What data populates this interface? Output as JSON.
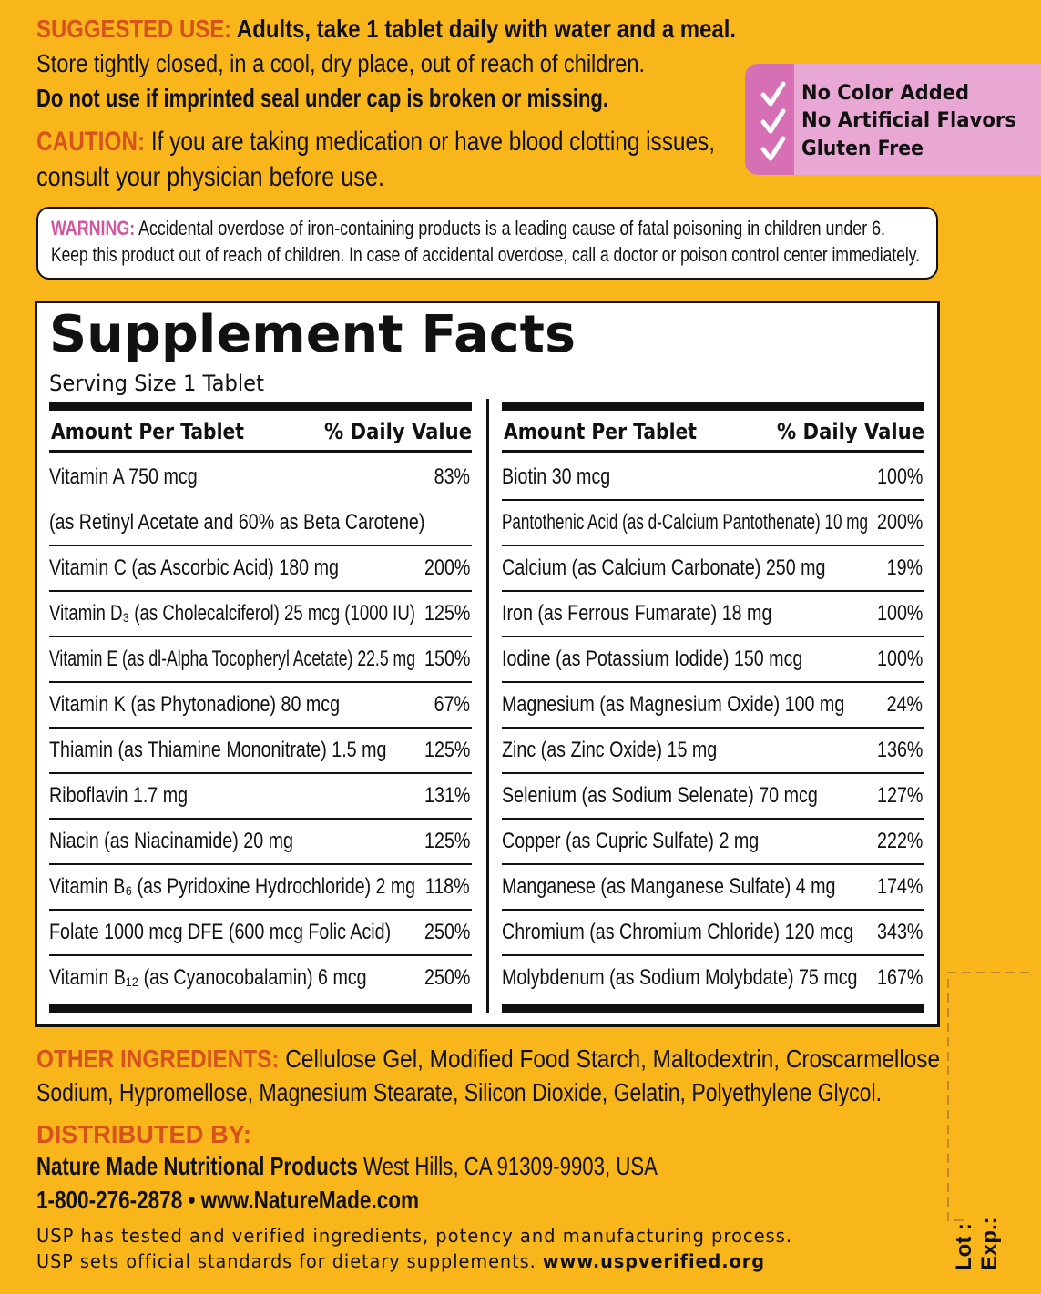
{
  "suggested_use": {
    "label": "SUGGESTED USE:",
    "text": "Adults, take 1 tablet daily with water and a meal."
  },
  "storage": "Store tightly closed, in a cool, dry place, out of reach of children.",
  "seal": "Do not use if imprinted seal under cap is broken or missing.",
  "caution": {
    "label": "CAUTION:",
    "lines": [
      "If you are taking medication or have blood clotting issues,",
      "consult your physician before use."
    ]
  },
  "badges": [
    "No Color Added",
    "No Artificial Flavors",
    "Gluten Free"
  ],
  "warning": {
    "label": "WARNING:",
    "lines": [
      "Accidental overdose of iron-containing products is a leading cause of fatal poisoning in children under 6.",
      "Keep this product out of reach of children. In case of accidental overdose, call a doctor or poison control center immediately."
    ]
  },
  "facts": {
    "title": "Supplement Facts",
    "serving": "Serving Size 1 Tablet",
    "header": {
      "amount": "Amount Per Tablet",
      "dv": "% Daily Value"
    },
    "left": [
      {
        "name": "Vitamin A 750 mcg",
        "dv": "83%",
        "note": "(as Retinyl Acetate and 60% as Beta Carotene)"
      },
      {
        "name": "Vitamin C (as Ascorbic Acid) 180 mg",
        "dv": "200%"
      },
      {
        "name": "Vitamin D₃ (as Cholecalciferol) 25 mcg (1000 IU)",
        "dv": "125%"
      },
      {
        "name": "Vitamin E (as dl-Alpha Tocopheryl Acetate) 22.5 mg",
        "dv": "150%"
      },
      {
        "name": "Vitamin K (as Phytonadione) 80 mcg",
        "dv": "67%"
      },
      {
        "name": "Thiamin (as Thiamine Mononitrate) 1.5 mg",
        "dv": "125%"
      },
      {
        "name": "Riboflavin 1.7 mg",
        "dv": "131%"
      },
      {
        "name": "Niacin (as Niacinamide) 20 mg",
        "dv": "125%"
      },
      {
        "name": "Vitamin B₆ (as Pyridoxine Hydrochloride) 2 mg",
        "dv": "118%"
      },
      {
        "name": "Folate 1000 mcg DFE (600 mcg Folic Acid)",
        "dv": "250%"
      },
      {
        "name": "Vitamin B₁₂ (as Cyanocobalamin) 6 mcg",
        "dv": "250%"
      }
    ],
    "right": [
      {
        "name": "Biotin 30 mcg",
        "dv": "100%"
      },
      {
        "name": "Pantothenic Acid (as d-Calcium Pantothenate) 10 mg",
        "dv": "200%"
      },
      {
        "name": "Calcium (as Calcium Carbonate) 250 mg",
        "dv": "19%"
      },
      {
        "name": "Iron (as Ferrous Fumarate) 18 mg",
        "dv": "100%"
      },
      {
        "name": "Iodine (as Potassium Iodide) 150 mcg",
        "dv": "100%"
      },
      {
        "name": "Magnesium (as Magnesium Oxide) 100 mg",
        "dv": "24%"
      },
      {
        "name": "Zinc (as Zinc Oxide) 15 mg",
        "dv": "136%"
      },
      {
        "name": "Selenium (as Sodium Selenate) 70 mcg",
        "dv": "127%"
      },
      {
        "name": "Copper (as Cupric Sulfate) 2 mg",
        "dv": "222%"
      },
      {
        "name": "Manganese (as Manganese Sulfate) 4 mg",
        "dv": "174%"
      },
      {
        "name": "Chromium (as Chromium Chloride) 120 mcg",
        "dv": "343%"
      },
      {
        "name": "Molybdenum (as Sodium Molybdate) 75 mcg",
        "dv": "167%"
      }
    ]
  },
  "other_ingredients": {
    "label": "OTHER INGREDIENTS:",
    "lines": [
      "Cellulose Gel, Modified Food Starch, Maltodextrin, Croscarmellose",
      "Sodium, Hypromellose, Magnesium Stearate, Silicon Dioxide, Gelatin, Polyethylene Glycol."
    ]
  },
  "distributor": {
    "label": "DISTRIBUTED BY:",
    "company": "Nature Made Nutritional Products",
    "address": "West Hills, CA 91309-9903, USA",
    "contact": "1-800-276-2878 • www.NatureMade.com"
  },
  "usp": {
    "line1": "USP has tested and verified ingredients, potency and manufacturing process.",
    "line2": "USP sets official standards for dietary supplements.",
    "url": "www.uspverified.org"
  },
  "lot": "Lot :",
  "exp": "Exp.:"
}
